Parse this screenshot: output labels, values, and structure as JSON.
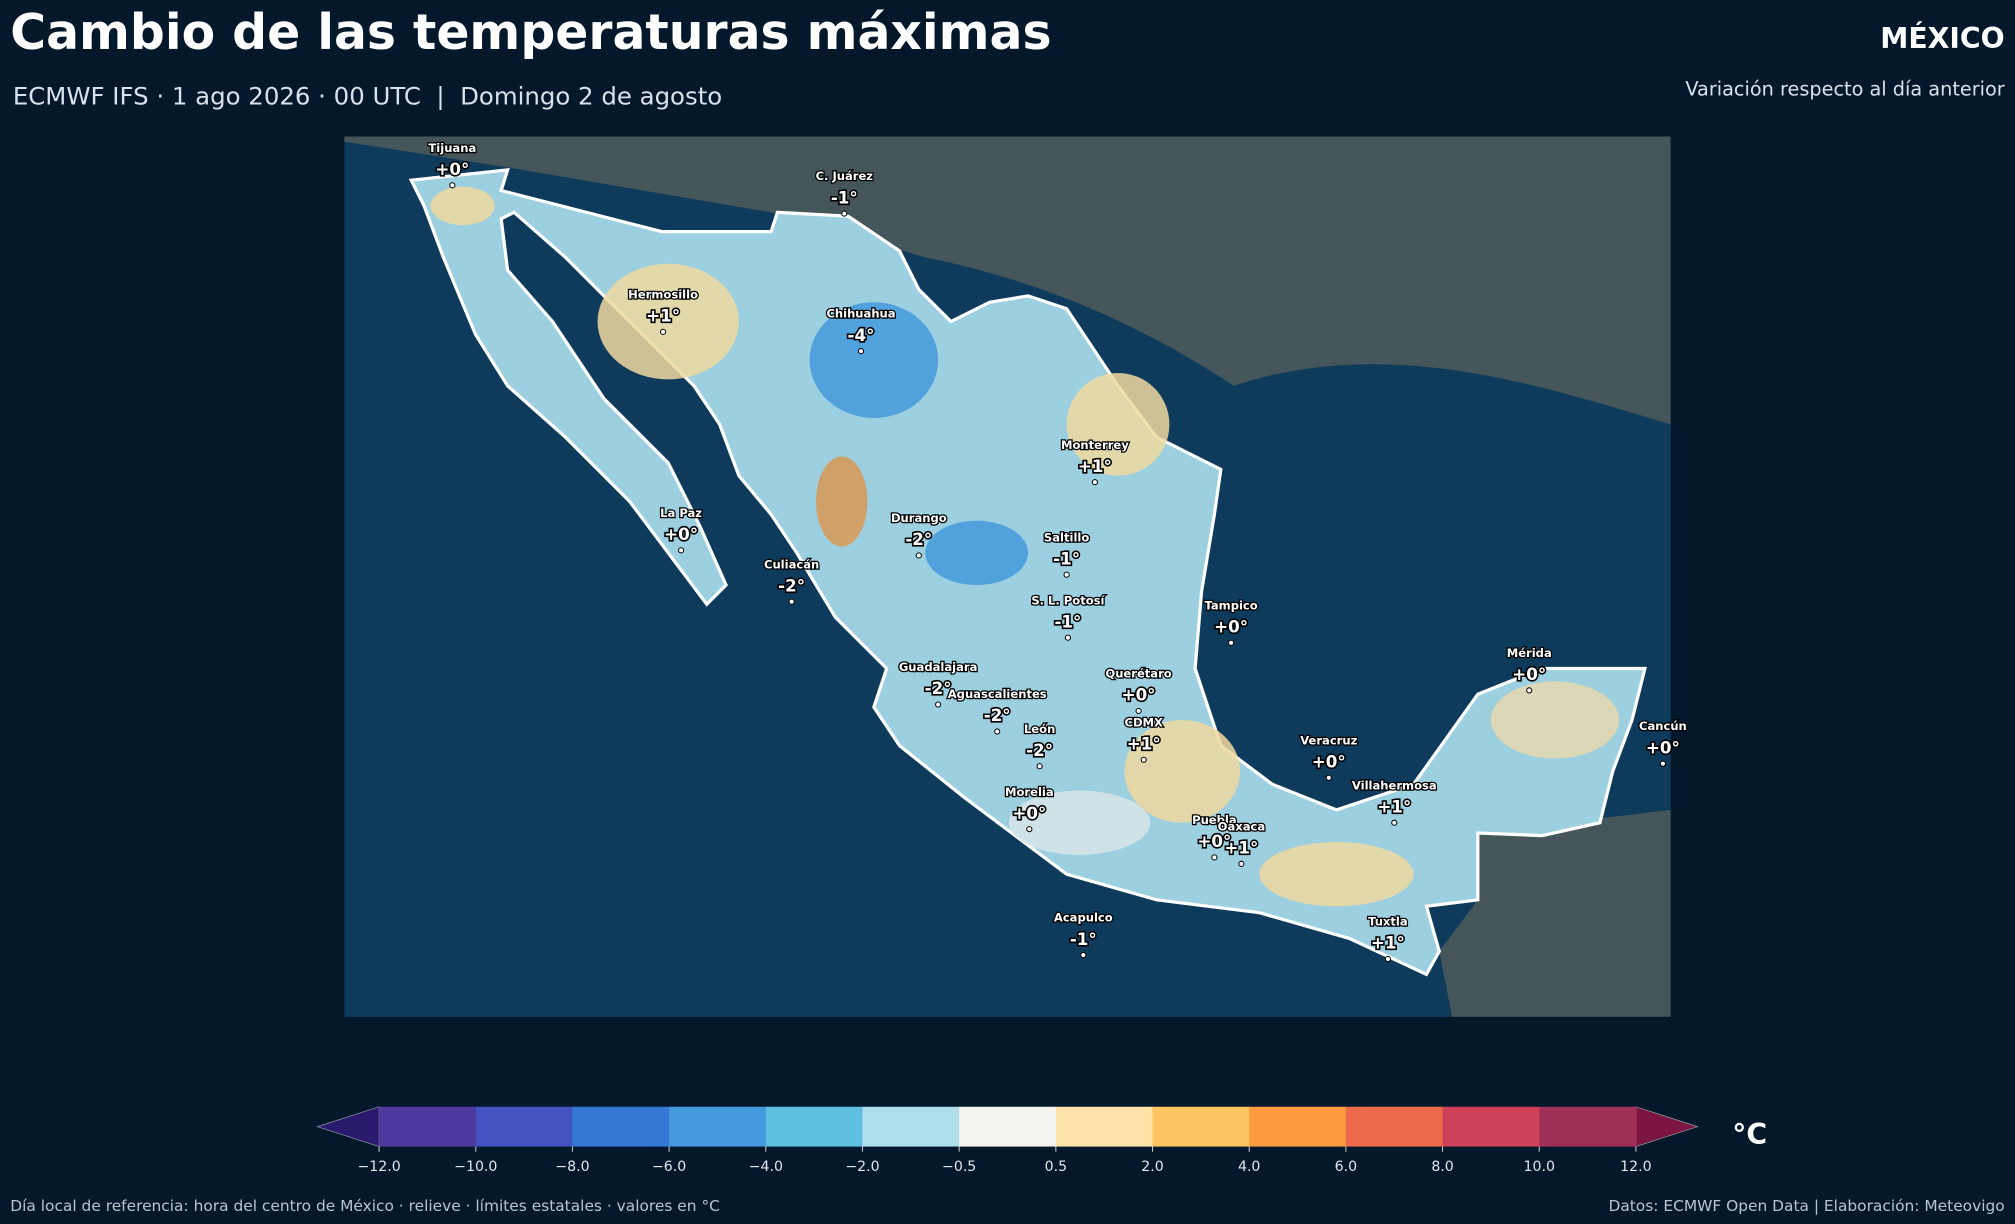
{
  "header": {
    "title": "Cambio de las temperaturas máximas",
    "subtitle": "ECMWF IFS · 1 ago 2026 · 00 UTC  |  Domingo 2 de agosto",
    "region": "MÉXICO",
    "note": "Variación respecto al día anterior"
  },
  "cities": [
    {
      "name": "Tijuana",
      "label": "+0°"
    },
    {
      "name": "C. Juárez",
      "label": "-1°"
    },
    {
      "name": "Hermosillo",
      "label": "+1°"
    },
    {
      "name": "Chihuahua",
      "label": "-4°"
    },
    {
      "name": "Monterrey",
      "label": "+1°"
    },
    {
      "name": "La Paz",
      "label": "+0°"
    },
    {
      "name": "Durango",
      "label": "-2°"
    },
    {
      "name": "Saltillo",
      "label": "-1°"
    },
    {
      "name": "Culiacán",
      "label": "-2°"
    },
    {
      "name": "Tampico",
      "label": "+0°"
    },
    {
      "name": "S. L. Potosí",
      "label": "-1°"
    },
    {
      "name": "Mérida",
      "label": "+0°"
    },
    {
      "name": "Querétaro",
      "label": "+0°"
    },
    {
      "name": "Guadalajara",
      "label": "-2°"
    },
    {
      "name": "Aguascalientes",
      "label": "-2°"
    },
    {
      "name": "CDMX",
      "label": "+1°"
    },
    {
      "name": "León",
      "label": "-2°"
    },
    {
      "name": "Veracruz",
      "label": "+0°"
    },
    {
      "name": "Cancún",
      "label": "+0°"
    },
    {
      "name": "Villahermosa",
      "label": "+1°"
    },
    {
      "name": "Morelia",
      "label": "+0°"
    },
    {
      "name": "Puebla",
      "label": "+0°"
    },
    {
      "name": "Oaxaca",
      "label": "+1°"
    },
    {
      "name": "Acapulco",
      "label": "-1°"
    },
    {
      "name": "Tuxtla",
      "label": "+1°"
    }
  ],
  "colorbar": {
    "unit": "°C",
    "under_color": "#2a1a6e",
    "over_color": "#7c1640",
    "colors": [
      "#4e3a9e",
      "#4453c2",
      "#3578d4",
      "#4499dc",
      "#5fbfe0",
      "#aedfea",
      "#f2f3ef",
      "#fde3a8",
      "#fdc55f",
      "#fb9a40",
      "#ed6a4a",
      "#cf4159",
      "#a03058"
    ],
    "ticks": [
      {
        "value": -12,
        "label": "−12.0"
      },
      {
        "value": -10,
        "label": "−10.0"
      },
      {
        "value": -8,
        "label": "−8.0"
      },
      {
        "value": -6,
        "label": "−6.0"
      },
      {
        "value": -4,
        "label": "−4.0"
      },
      {
        "value": -2,
        "label": "−2.0"
      },
      {
        "value": -0.5,
        "label": "−0.5"
      },
      {
        "value": 0.5,
        "label": "0.5"
      },
      {
        "value": 2,
        "label": "2.0"
      },
      {
        "value": 4,
        "label": "4.0"
      },
      {
        "value": 6,
        "label": "6.0"
      },
      {
        "value": 8,
        "label": "8.0"
      },
      {
        "value": 10,
        "label": "10.0"
      },
      {
        "value": 12,
        "label": "12.0"
      }
    ]
  },
  "footer": {
    "left": "Día local de referencia: hora del centro de México · relieve · límites estatales · valores en °C",
    "right": "Datos: ECMWF Open Data | Elaboración: Meteovigo"
  }
}
